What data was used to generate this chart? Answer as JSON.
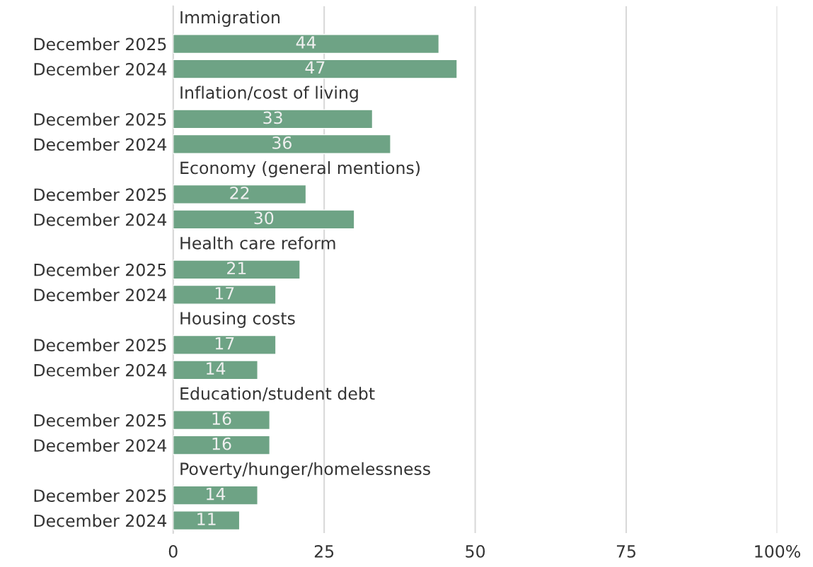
{
  "chart_data": {
    "type": "bar",
    "orientation": "horizontal",
    "categories": [
      "December 2025",
      "December 2024",
      "December 2025",
      "December 2024",
      "December 2025",
      "December 2024",
      "December 2025",
      "December 2024",
      "December 2025",
      "December 2024",
      "December 2025",
      "December 2024",
      "December 2025",
      "December 2024"
    ],
    "values": [
      44,
      47,
      33,
      36,
      22,
      30,
      21,
      17,
      17,
      14,
      16,
      16,
      14,
      11
    ],
    "color": "#6ea385",
    "annotations": [
      "Immigration",
      "Inflation/cost of living",
      "Economy (general mentions)",
      "Health care reform",
      "Housing costs",
      "Education/student debt",
      "Poverty/hunger/homelessness"
    ],
    "xlim": [
      0,
      100
    ],
    "xticks": [
      0,
      25,
      50,
      75,
      {
        "value": 100,
        "label": "100%"
      }
    ],
    "grid": "x",
    "data_labels": true
  }
}
